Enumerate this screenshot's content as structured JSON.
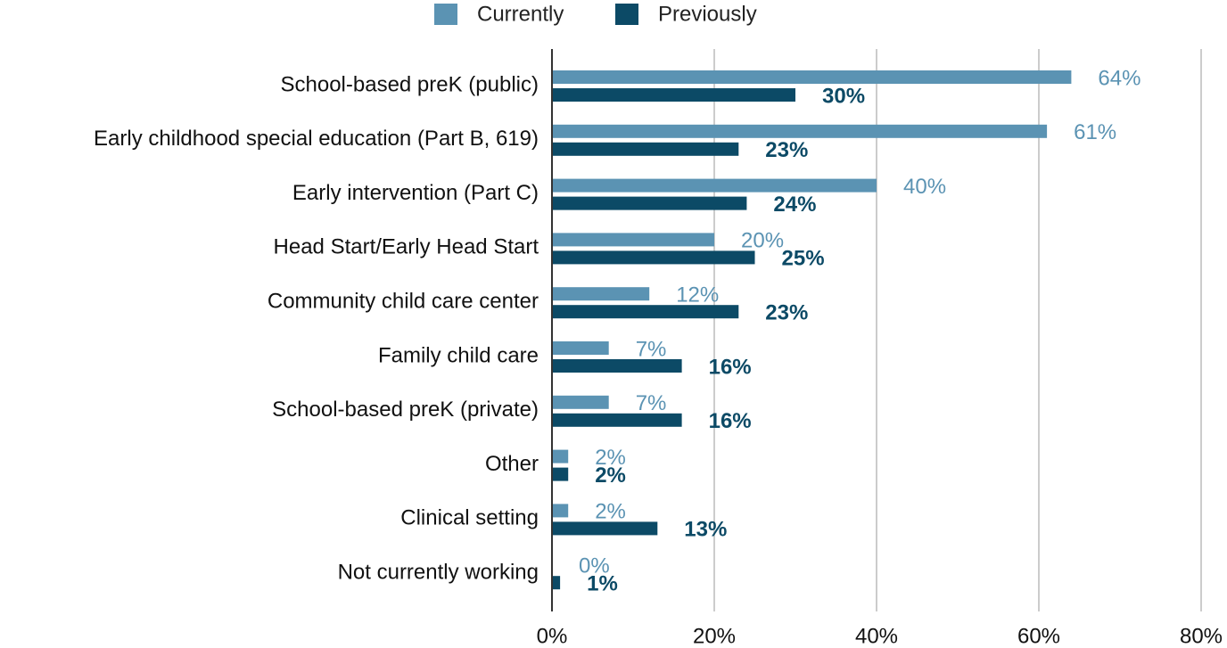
{
  "chart_data": {
    "type": "bar",
    "orientation": "horizontal",
    "categories": [
      "School-based preK (public)",
      "Early childhood special education (Part B, 619)",
      "Early intervention (Part C)",
      "Head Start/Early Head Start",
      "Community child care center",
      "Family child care",
      "School-based preK (private)",
      "Other",
      "Clinical setting",
      "Not currently working"
    ],
    "series": [
      {
        "name": "Currently",
        "color": "#5b93b3",
        "values": [
          64,
          61,
          40,
          20,
          12,
          7,
          7,
          2,
          2,
          0
        ],
        "value_labels": [
          "64%",
          "61%",
          "40%",
          "20%",
          "12%",
          "7%",
          "7%",
          "2%",
          "2%",
          "0%"
        ]
      },
      {
        "name": "Previously",
        "color": "#0c4a66",
        "values": [
          30,
          23,
          24,
          25,
          23,
          16,
          16,
          2,
          13,
          1
        ],
        "value_labels": [
          "30%",
          "23%",
          "24%",
          "25%",
          "23%",
          "16%",
          "16%",
          "2%",
          "13%",
          "1%"
        ]
      }
    ],
    "xlim": [
      0,
      80
    ],
    "xticks": [
      {
        "value": 0,
        "label": "0%"
      },
      {
        "value": 20,
        "label": "20%"
      },
      {
        "value": 40,
        "label": "40%"
      },
      {
        "value": 60,
        "label": "60%"
      },
      {
        "value": 80,
        "label": "80%"
      }
    ],
    "grid": true,
    "legend": "top"
  }
}
